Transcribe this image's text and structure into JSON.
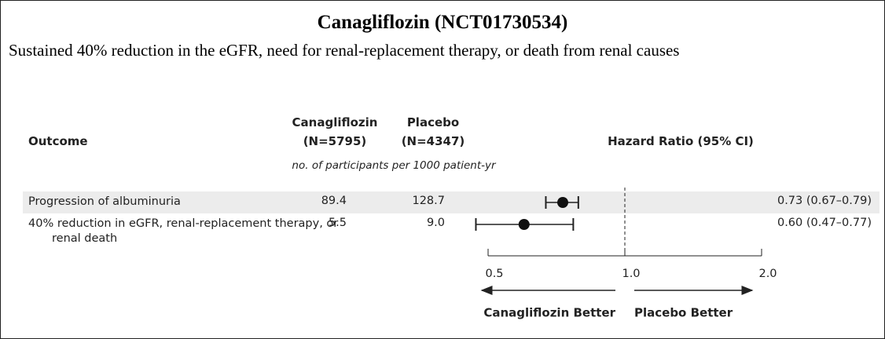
{
  "chart_data": {
    "type": "forest",
    "title": "Canagliflozin (NCT01730534)",
    "subtitle": "Sustained 40% reduction in the eGFR, need for renal-replacement therapy, or death from renal causes",
    "columns": {
      "outcome": "Outcome",
      "treatment": "Canagliflozin",
      "treatment_n": "(N=5795)",
      "placebo": "Placebo",
      "placebo_n": "(N=4347)",
      "effect": "Hazard Ratio (95% CI)"
    },
    "rate_unit": "no. of participants per 1000 patient-yr",
    "categories": [
      "Progression of albuminuria",
      "40% reduction in eGFR, renal-replacement therapy, or renal death"
    ],
    "treatment_rates": [
      "89.4",
      "5.5"
    ],
    "placebo_rates": [
      "128.7",
      "9.0"
    ],
    "values": [
      0.73,
      0.6
    ],
    "lower": [
      0.67,
      0.47
    ],
    "upper": [
      0.79,
      0.77
    ],
    "value_labels": [
      "0.73 (0.67–0.79)",
      "0.60 (0.47–0.77)"
    ],
    "xlim": [
      0.5,
      2.0
    ],
    "xticks": [
      0.5,
      {
        "value": 1,
        "label": "1.0"
      },
      {
        "value": 2,
        "label": "2.0"
      }
    ],
    "log_x": true,
    "reference": 1,
    "left_label": "Canagliflozin Better",
    "right_label": "Placebo Better"
  }
}
